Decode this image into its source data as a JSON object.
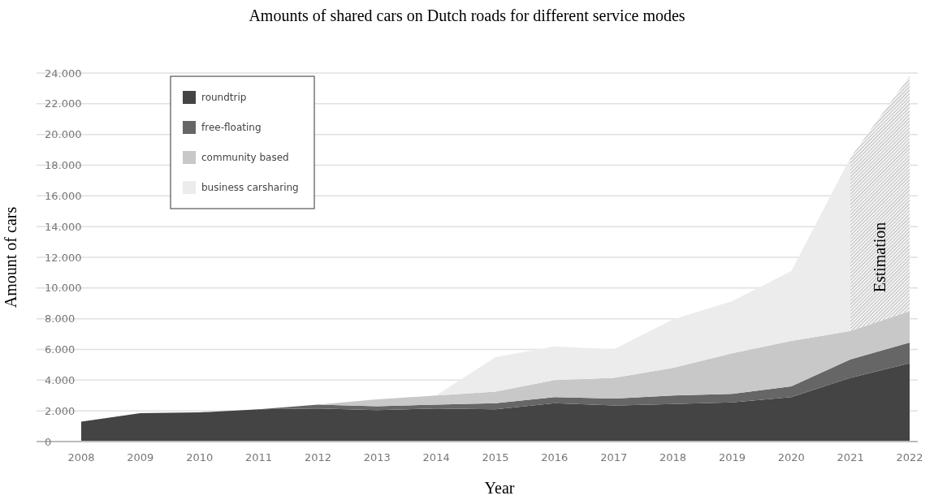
{
  "chart_data": {
    "type": "area",
    "stacked": true,
    "title": "Amounts of shared cars on Dutch roads for different service modes",
    "xlabel": "Year",
    "ylabel": "Amount of cars",
    "categories": [
      "2008",
      "2009",
      "2010",
      "2011",
      "2012",
      "2013",
      "2014",
      "2015",
      "2016",
      "2017",
      "2018",
      "2019",
      "2020",
      "2021",
      "2022"
    ],
    "series": [
      {
        "name": "roundtrip",
        "color": "#444444",
        "values": [
          1300,
          1850,
          1900,
          2100,
          2150,
          2050,
          2150,
          2100,
          2500,
          2350,
          2450,
          2550,
          2900,
          4150,
          5100
        ]
      },
      {
        "name": "free-floating",
        "color": "#666666",
        "values": [
          0,
          0,
          0,
          0,
          250,
          250,
          250,
          400,
          400,
          450,
          550,
          550,
          700,
          1200,
          1350
        ]
      },
      {
        "name": "community based",
        "color": "#c8c8c8",
        "values": [
          0,
          0,
          0,
          0,
          0,
          450,
          600,
          750,
          1100,
          1350,
          1800,
          2650,
          2950,
          1850,
          2050
        ]
      },
      {
        "name": "business carsharing",
        "color": "#ececec",
        "values": [
          0,
          0,
          0,
          0,
          0,
          0,
          0,
          2250,
          2200,
          1850,
          3150,
          3400,
          4550,
          11300,
          15300
        ]
      }
    ],
    "ylim": [
      0,
      24000
    ],
    "yticks": [
      {
        "value": 0,
        "label": "0"
      },
      {
        "value": 2000,
        "label": "2.000"
      },
      {
        "value": 4000,
        "label": "4.000"
      },
      {
        "value": 6000,
        "label": "6.000"
      },
      {
        "value": 8000,
        "label": "8.000"
      },
      {
        "value": 10000,
        "label": "10.000"
      },
      {
        "value": 12000,
        "label": "12.000"
      },
      {
        "value": 14000,
        "label": "14.000"
      },
      {
        "value": 16000,
        "label": "16.000"
      },
      {
        "value": 18000,
        "label": "18.000"
      },
      {
        "value": 20000,
        "label": "20.000"
      },
      {
        "value": 22000,
        "label": "22.000"
      },
      {
        "value": 24000,
        "label": "24.000"
      }
    ],
    "bands": [
      {
        "axis": "x",
        "from": "2021",
        "to": "2022",
        "label": "Estimation",
        "color": "#999999"
      }
    ],
    "grid": "y",
    "legend": "top left"
  }
}
